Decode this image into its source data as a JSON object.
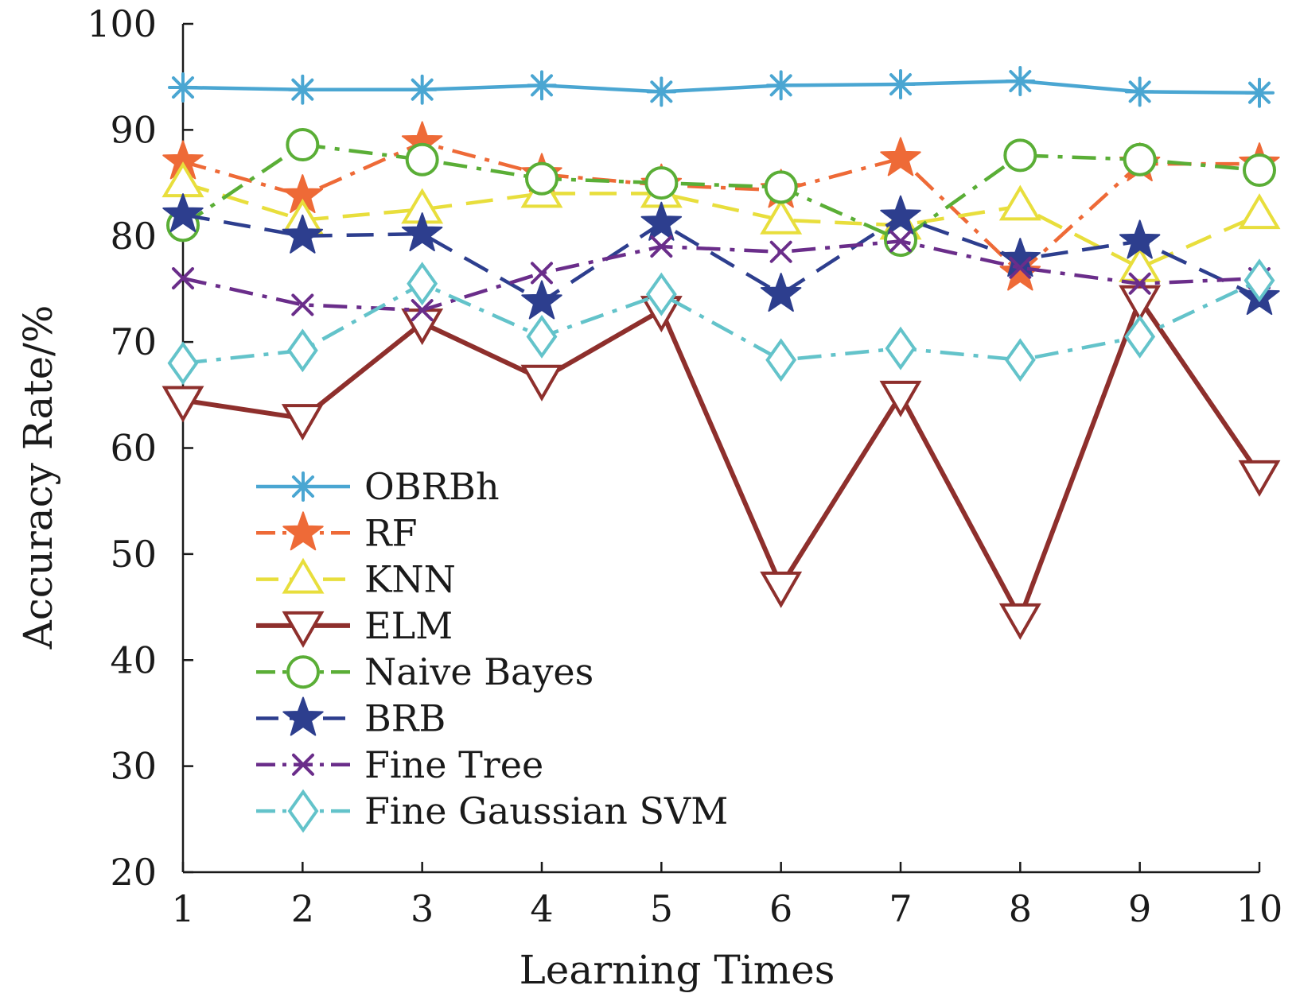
{
  "chart_data": {
    "type": "line",
    "xlabel": "Learning Times",
    "ylabel": "Accuracy Rate/%",
    "x": [
      1,
      2,
      3,
      4,
      5,
      6,
      7,
      8,
      9,
      10
    ],
    "xlim": [
      1,
      10
    ],
    "ylim": [
      20,
      100
    ],
    "xticks": [
      "1",
      "2",
      "3",
      "4",
      "5",
      "6",
      "7",
      "8",
      "9",
      "10"
    ],
    "yticks": [
      "20",
      "30",
      "40",
      "50",
      "60",
      "70",
      "80",
      "90",
      "100"
    ],
    "grid": false,
    "legend_position": "lower-left",
    "series": [
      {
        "name": "OBRBh",
        "color": "#4aa6d2",
        "dash": "solid",
        "marker": "asterisk",
        "values": [
          94.0,
          93.8,
          93.8,
          94.2,
          93.6,
          94.2,
          94.3,
          94.6,
          93.6,
          93.5
        ]
      },
      {
        "name": "RF",
        "color": "#ee6a37",
        "dash": "dashdot",
        "marker": "pentagram",
        "values": [
          87.0,
          83.8,
          88.8,
          85.8,
          84.8,
          84.3,
          87.3,
          76.5,
          86.8,
          86.8
        ]
      },
      {
        "name": "KNN",
        "color": "#e8de3c",
        "dash": "dashed",
        "marker": "triangle-up",
        "values": [
          85.0,
          81.5,
          82.5,
          84.0,
          84.0,
          81.5,
          81.0,
          82.8,
          77.0,
          82.0
        ]
      },
      {
        "name": "ELM",
        "color": "#8e2f2c",
        "dash": "solid",
        "marker": "triangle-down",
        "values": [
          64.5,
          62.8,
          71.8,
          66.5,
          73.0,
          47.0,
          65.0,
          44.0,
          74.0,
          57.5
        ]
      },
      {
        "name": "Naive Bayes",
        "color": "#5aae36",
        "dash": "dashdot",
        "marker": "circle",
        "values": [
          81.0,
          88.6,
          87.2,
          85.4,
          85.0,
          84.6,
          79.6,
          87.6,
          87.2,
          86.2
        ]
      },
      {
        "name": "BRB",
        "color": "#2d3e8e",
        "dash": "dashed",
        "marker": "pentagram",
        "values": [
          82.0,
          80.0,
          80.2,
          73.8,
          81.2,
          74.5,
          81.8,
          77.8,
          79.5,
          74.2
        ]
      },
      {
        "name": "Fine Tree",
        "color": "#6a2d8a",
        "dash": "dashdot",
        "marker": "x",
        "values": [
          76.0,
          73.5,
          73.0,
          76.5,
          79.0,
          78.5,
          79.5,
          77.0,
          75.5,
          76.0
        ]
      },
      {
        "name": "Fine Gaussian SVM",
        "color": "#63c3ca",
        "dash": "dashdot",
        "marker": "diamond",
        "values": [
          68.0,
          69.2,
          75.5,
          70.5,
          74.5,
          68.3,
          69.4,
          68.3,
          70.5,
          75.8
        ]
      }
    ]
  }
}
